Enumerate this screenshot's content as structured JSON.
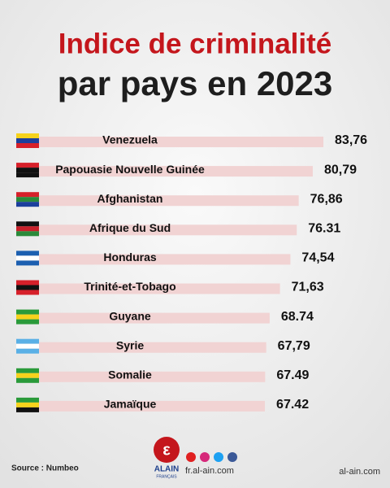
{
  "chart_data": {
    "type": "bar",
    "orientation": "horizontal",
    "title": "Indice de criminalité",
    "subtitle": "par pays en 2023",
    "categories": [
      "Venezuela",
      "Papouasie Nouvelle Guinée",
      "Afghanistan",
      "Afrique du Sud",
      "Honduras",
      "Trinité-et-Tobago",
      "Guyane",
      "Syrie",
      "Somalie",
      "Jamaïque"
    ],
    "values": [
      83.76,
      80.79,
      76.86,
      76.31,
      74.54,
      71.63,
      68.74,
      67.79,
      67.49,
      67.42
    ],
    "value_labels": [
      "83,76",
      "80,79",
      "76,86",
      "76.31",
      "74,54",
      "71,63",
      "68.74",
      "67,79",
      "67.49",
      "67.42"
    ],
    "color": "#f1d3d3",
    "source": "Source : Numbeo"
  },
  "footer": {
    "logo_text": "ALAIN",
    "logo_subtext": "FRANÇAIS",
    "website": "fr.al-ain.com",
    "watermark": "al-ain.com"
  }
}
